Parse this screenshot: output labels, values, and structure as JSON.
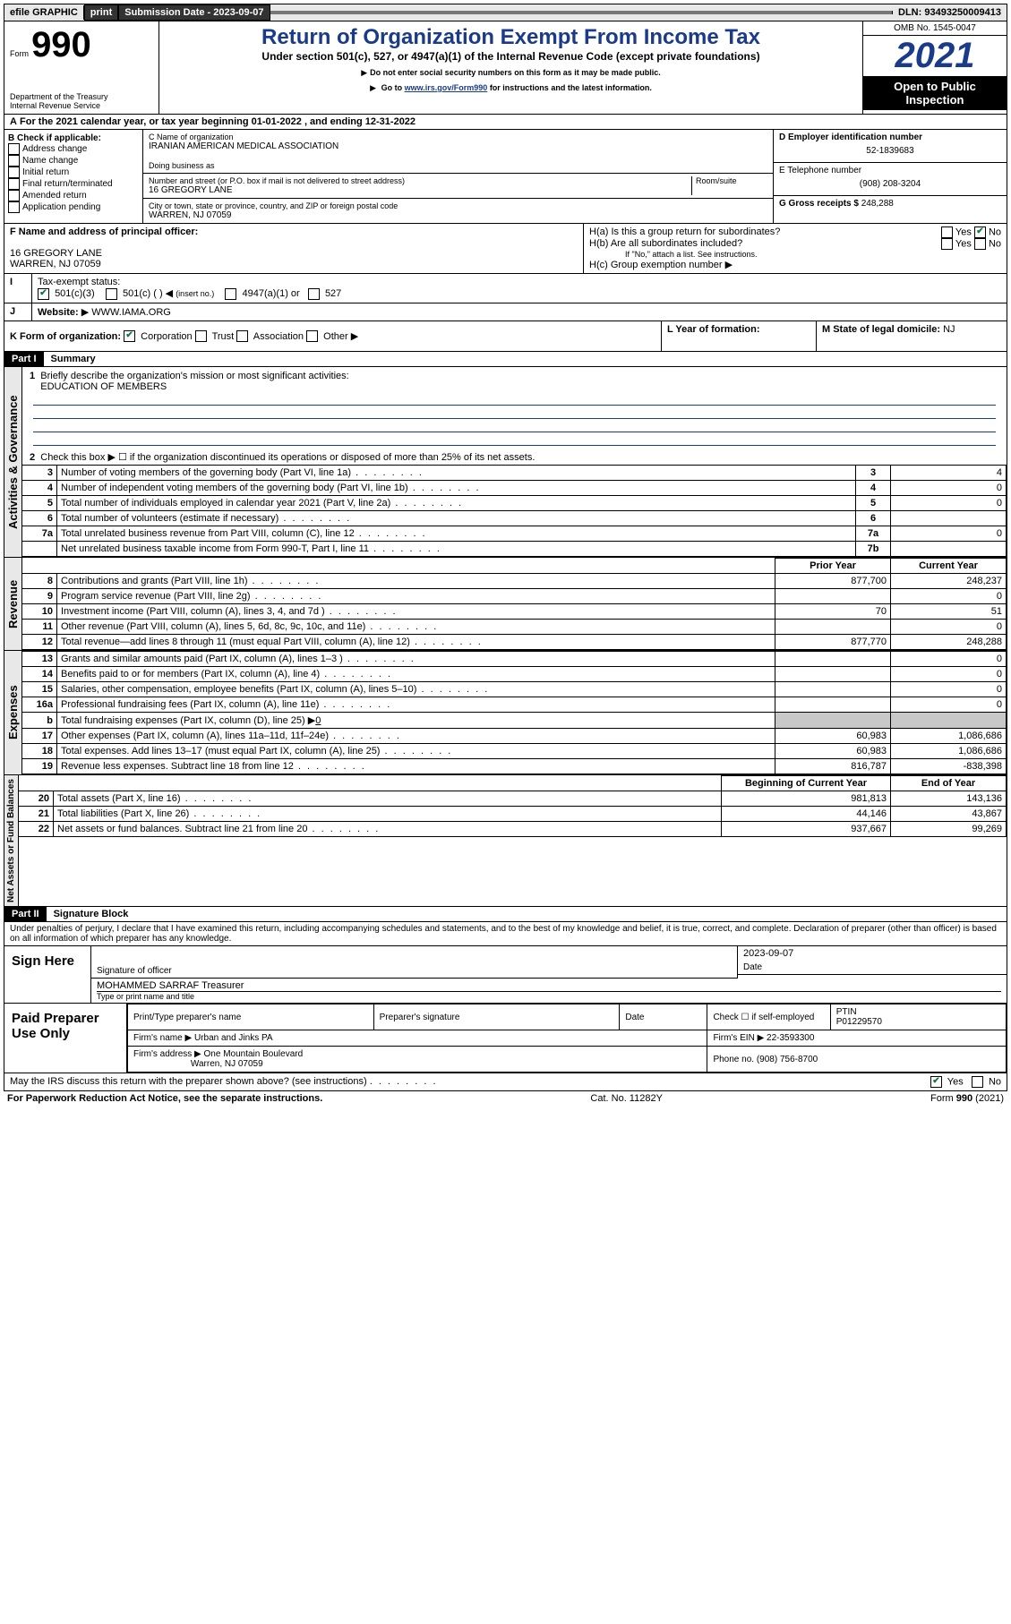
{
  "topbar": {
    "efile": "efile GRAPHIC",
    "print": "print",
    "submission_label": "Submission Date - 2023-09-07",
    "dln": "DLN: 93493250009413"
  },
  "header": {
    "form_label": "Form",
    "form_number": "990",
    "dept": "Department of the Treasury",
    "irs": "Internal Revenue Service",
    "title": "Return of Organization Exempt From Income Tax",
    "subtitle": "Under section 501(c), 527, or 4947(a)(1) of the Internal Revenue Code (except private foundations)",
    "note1": "Do not enter social security numbers on this form as it may be made public.",
    "note2_pre": "Go to ",
    "note2_link": "www.irs.gov/Form990",
    "note2_post": " for instructions and the latest information.",
    "omb": "OMB No. 1545-0047",
    "year": "2021",
    "open_public": "Open to Public Inspection"
  },
  "rowA": "For the 2021 calendar year, or tax year beginning 01-01-2022    , and ending 12-31-2022",
  "boxB": {
    "label": "B Check if applicable:",
    "items": [
      "Address change",
      "Name change",
      "Initial return",
      "Final return/terminated",
      "Amended return",
      "Application pending"
    ]
  },
  "boxC": {
    "name_label": "C Name of organization",
    "name": "IRANIAN AMERICAN MEDICAL ASSOCIATION",
    "dba_label": "Doing business as",
    "street_label": "Number and street (or P.O. box if mail is not delivered to street address)",
    "room_label": "Room/suite",
    "street": "16 GREGORY LANE",
    "city_label": "City or town, state or province, country, and ZIP or foreign postal code",
    "city": "WARREN, NJ  07059"
  },
  "boxD": {
    "label": "D Employer identification number",
    "value": "52-1839683"
  },
  "boxE": {
    "label": "E Telephone number",
    "value": "(908) 208-3204"
  },
  "boxG": {
    "label": "G Gross receipts $",
    "value": "248,288"
  },
  "boxF": {
    "label": "F Name and address of principal officer:",
    "line1": "16 GREGORY LANE",
    "line2": "WARREN, NJ  07059"
  },
  "boxH": {
    "a_label": "H(a)  Is this a group return for subordinates?",
    "b_label": "H(b)  Are all subordinates included?",
    "b_note": "If \"No,\" attach a list. See instructions.",
    "c_label": "H(c)  Group exemption number",
    "yes": "Yes",
    "no": "No"
  },
  "rowI": {
    "label": "Tax-exempt status:",
    "opt1": "501(c)(3)",
    "opt2": "501(c) (  )",
    "opt2_note": "(insert no.)",
    "opt3": "4947(a)(1) or",
    "opt4": "527"
  },
  "rowJ": {
    "label": "Website:",
    "value": "WWW.IAMA.ORG"
  },
  "rowK": {
    "label": "K Form of organization:",
    "opts": [
      "Corporation",
      "Trust",
      "Association",
      "Other"
    ]
  },
  "rowL": {
    "label": "L Year of formation:",
    "value": ""
  },
  "rowM": {
    "label": "M State of legal domicile:",
    "value": "NJ"
  },
  "part1": {
    "header": "Part I",
    "title": "Summary",
    "vlabel1": "Activities & Governance",
    "vlabel2": "Revenue",
    "vlabel3": "Expenses",
    "vlabel4": "Net Assets or Fund Balances",
    "line1_label": "Briefly describe the organization's mission or most significant activities:",
    "line1_value": "EDUCATION OF MEMBERS",
    "line2": "Check this box ▶ ☐  if the organization discontinued its operations or disposed of more than 25% of its net assets.",
    "rows_ag": [
      {
        "n": "3",
        "desc": "Number of voting members of the governing body (Part VI, line 1a)",
        "box": "3",
        "val": "4"
      },
      {
        "n": "4",
        "desc": "Number of independent voting members of the governing body (Part VI, line 1b)",
        "box": "4",
        "val": "0"
      },
      {
        "n": "5",
        "desc": "Total number of individuals employed in calendar year 2021 (Part V, line 2a)",
        "box": "5",
        "val": "0"
      },
      {
        "n": "6",
        "desc": "Total number of volunteers (estimate if necessary)",
        "box": "6",
        "val": ""
      },
      {
        "n": "7a",
        "desc": "Total unrelated business revenue from Part VIII, column (C), line 12",
        "box": "7a",
        "val": "0"
      },
      {
        "n": "",
        "desc": "Net unrelated business taxable income from Form 990-T, Part I, line 11",
        "box": "7b",
        "val": ""
      }
    ],
    "col_prior": "Prior Year",
    "col_current": "Current Year",
    "rows_rev": [
      {
        "n": "8",
        "desc": "Contributions and grants (Part VIII, line 1h)",
        "prior": "877,700",
        "curr": "248,237"
      },
      {
        "n": "9",
        "desc": "Program service revenue (Part VIII, line 2g)",
        "prior": "",
        "curr": "0"
      },
      {
        "n": "10",
        "desc": "Investment income (Part VIII, column (A), lines 3, 4, and 7d )",
        "prior": "70",
        "curr": "51"
      },
      {
        "n": "11",
        "desc": "Other revenue (Part VIII, column (A), lines 5, 6d, 8c, 9c, 10c, and 11e)",
        "prior": "",
        "curr": "0"
      },
      {
        "n": "12",
        "desc": "Total revenue—add lines 8 through 11 (must equal Part VIII, column (A), line 12)",
        "prior": "877,770",
        "curr": "248,288"
      }
    ],
    "rows_exp": [
      {
        "n": "13",
        "desc": "Grants and similar amounts paid (Part IX, column (A), lines 1–3 )",
        "prior": "",
        "curr": "0"
      },
      {
        "n": "14",
        "desc": "Benefits paid to or for members (Part IX, column (A), line 4)",
        "prior": "",
        "curr": "0"
      },
      {
        "n": "15",
        "desc": "Salaries, other compensation, employee benefits (Part IX, column (A), lines 5–10)",
        "prior": "",
        "curr": "0"
      },
      {
        "n": "16a",
        "desc": "Professional fundraising fees (Part IX, column (A), line 11e)",
        "prior": "",
        "curr": "0"
      }
    ],
    "row_16b": {
      "n": "b",
      "desc": "Total fundraising expenses (Part IX, column (D), line 25) ▶",
      "val": "0"
    },
    "rows_exp2": [
      {
        "n": "17",
        "desc": "Other expenses (Part IX, column (A), lines 11a–11d, 11f–24e)",
        "prior": "60,983",
        "curr": "1,086,686"
      },
      {
        "n": "18",
        "desc": "Total expenses. Add lines 13–17 (must equal Part IX, column (A), line 25)",
        "prior": "60,983",
        "curr": "1,086,686"
      },
      {
        "n": "19",
        "desc": "Revenue less expenses. Subtract line 18 from line 12",
        "prior": "816,787",
        "curr": "-838,398"
      }
    ],
    "col_begin": "Beginning of Current Year",
    "col_end": "End of Year",
    "rows_net": [
      {
        "n": "20",
        "desc": "Total assets (Part X, line 16)",
        "prior": "981,813",
        "curr": "143,136"
      },
      {
        "n": "21",
        "desc": "Total liabilities (Part X, line 26)",
        "prior": "44,146",
        "curr": "43,867"
      },
      {
        "n": "22",
        "desc": "Net assets or fund balances. Subtract line 21 from line 20",
        "prior": "937,667",
        "curr": "99,269"
      }
    ]
  },
  "part2": {
    "header": "Part II",
    "title": "Signature Block",
    "declaration": "Under penalties of perjury, I declare that I have examined this return, including accompanying schedules and statements, and to the best of my knowledge and belief, it is true, correct, and complete. Declaration of preparer (other than officer) is based on all information of which preparer has any knowledge.",
    "sign_here": "Sign Here",
    "sig_officer": "Signature of officer",
    "sig_date": "2023-09-07",
    "date_label": "Date",
    "officer_name": "MOHAMMED SARRAF Treasurer",
    "name_label": "Type or print name and title",
    "paid_label": "Paid Preparer Use Only",
    "preparer_name_label": "Print/Type preparer's name",
    "preparer_sig_label": "Preparer's signature",
    "check_self": "Check ☐ if self-employed",
    "ptin_label": "PTIN",
    "ptin": "P01229570",
    "firm_name_label": "Firm's name   ▶",
    "firm_name": "Urban and Jinks PA",
    "firm_ein_label": "Firm's EIN ▶",
    "firm_ein": "22-3593300",
    "firm_addr_label": "Firm's address ▶",
    "firm_addr1": "One Mountain Boulevard",
    "firm_addr2": "Warren, NJ  07059",
    "phone_label": "Phone no.",
    "phone": "(908) 756-8700",
    "may_irs": "May the IRS discuss this return with the preparer shown above? (see instructions)",
    "yes": "Yes",
    "no": "No"
  },
  "footer": {
    "left": "For Paperwork Reduction Act Notice, see the separate instructions.",
    "center": "Cat. No. 11282Y",
    "right": "Form 990 (2021)"
  }
}
